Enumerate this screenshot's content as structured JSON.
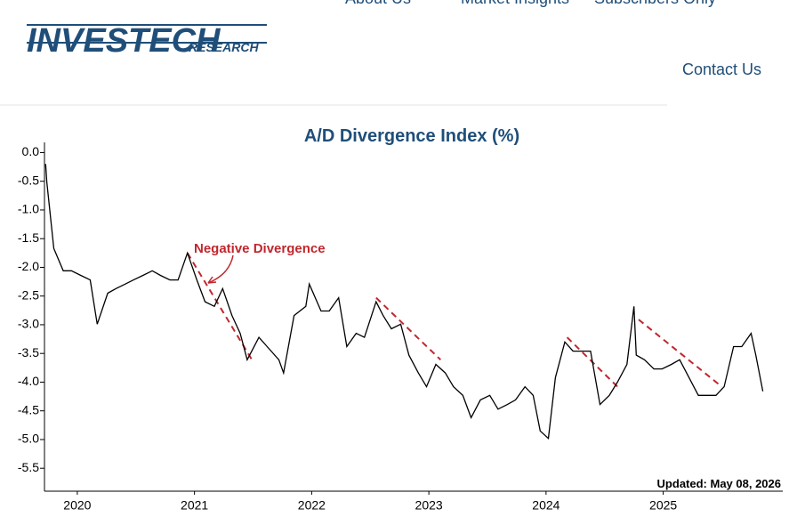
{
  "header": {
    "logo": {
      "main": "INVESTECH",
      "sub": "RESEARCH"
    },
    "nav": [
      "About Us",
      "Market Insights",
      "Subscribers Only",
      "Contact Us"
    ]
  },
  "chart_data": {
    "type": "line",
    "title": "A/D Divergence Index (%)",
    "color": "#000000",
    "x": [
      2020.23,
      2020.24,
      2020.3,
      2020.38,
      2020.45,
      2020.53,
      2020.61,
      2020.67,
      2020.76,
      2020.83,
      2020.91,
      2020.98,
      2021.06,
      2021.14,
      2021.21,
      2021.29,
      2021.36,
      2021.44,
      2021.52,
      2021.59,
      2021.67,
      2021.74,
      2021.82,
      2021.89,
      2021.95,
      2022.05,
      2022.12,
      2022.22,
      2022.26,
      2022.35,
      2022.45,
      2022.48,
      2022.58,
      2022.65,
      2022.73,
      2022.8,
      2022.88,
      2022.95,
      2023.05,
      2023.11,
      2023.18,
      2023.26,
      2023.33,
      2023.41,
      2023.48,
      2023.56,
      2023.64,
      2023.71,
      2023.79,
      2023.86,
      2023.94,
      2024.02,
      2024.09,
      2024.17,
      2024.24,
      2024.32,
      2024.39,
      2024.45,
      2024.52,
      2024.58,
      2024.66,
      2024.73,
      2024.81,
      2024.88,
      2024.96,
      2025.04,
      2025.11,
      2025.19,
      2025.25,
      2025.27,
      2025.34,
      2025.42,
      2025.49,
      2025.57,
      2025.64,
      2025.72,
      2025.8,
      2025.87,
      2025.95,
      2026.02,
      2026.1,
      2026.17,
      2026.25,
      2026.29,
      2026.35
    ],
    "values": [
      -0.2,
      -0.51,
      -1.67,
      -2.06,
      -2.06,
      -2.14,
      -2.22,
      -2.99,
      -2.45,
      -2.37,
      -2.29,
      -2.22,
      -2.14,
      -2.06,
      -2.14,
      -2.22,
      -2.22,
      -1.75,
      -2.22,
      -2.6,
      -2.68,
      -2.37,
      -2.84,
      -3.15,
      -3.61,
      -3.22,
      -3.38,
      -3.61,
      -3.84,
      -2.84,
      -2.68,
      -2.29,
      -2.76,
      -2.76,
      -2.53,
      -3.38,
      -3.15,
      -3.22,
      -2.6,
      -2.84,
      -3.07,
      -2.99,
      -3.53,
      -3.84,
      -4.08,
      -3.69,
      -3.84,
      -4.08,
      -4.23,
      -4.62,
      -4.31,
      -4.23,
      -4.47,
      -4.39,
      -4.31,
      -4.08,
      -4.23,
      -4.85,
      -4.98,
      -3.92,
      -3.3,
      -3.46,
      -3.46,
      -3.46,
      -4.39,
      -4.23,
      -4.0,
      -3.69,
      -2.68,
      -3.53,
      -3.61,
      -3.77,
      -3.77,
      -3.69,
      -3.61,
      -3.92,
      -4.23,
      -4.23,
      -4.23,
      -4.08,
      -3.38,
      -3.38,
      -3.15,
      -3.53,
      -4.16
    ],
    "trend_lines": {
      "color": "#c0272d",
      "lines": [
        {
          "x": [
            2021.44,
            2021.99
          ],
          "y": [
            -1.75,
            -3.61
          ]
        },
        {
          "x": [
            2023.05,
            2023.6
          ],
          "y": [
            -2.53,
            -3.61
          ]
        },
        {
          "x": [
            2024.68,
            2025.11
          ],
          "y": [
            -3.22,
            -4.08
          ]
        },
        {
          "x": [
            2025.29,
            2026.0
          ],
          "y": [
            -2.91,
            -4.08
          ]
        }
      ]
    },
    "annotation": "Negative Divergence",
    "updated": "Updated: May 08, 2026",
    "xlim": [
      2020.22,
      2026.52
    ],
    "xticks": [
      {
        "value": 2020.5,
        "label": "2020"
      },
      {
        "value": 2021.5,
        "label": "2021"
      },
      {
        "value": 2022.5,
        "label": "2022"
      },
      {
        "value": 2023.5,
        "label": "2023"
      },
      {
        "value": 2024.5,
        "label": "2024"
      },
      {
        "value": 2025.5,
        "label": "2025"
      }
    ],
    "ylim": [
      -5.9,
      0.1
    ],
    "yticks": [
      {
        "value": 0,
        "label": "0.0"
      },
      -0.5,
      {
        "value": -1,
        "label": "-1.0"
      },
      -1.5,
      {
        "value": -2,
        "label": "-2.0"
      },
      -2.5,
      {
        "value": -3,
        "label": "-3.0"
      },
      -3.5,
      {
        "value": -4,
        "label": "-4.0"
      },
      -4.5,
      {
        "value": -5,
        "label": "-5.0"
      },
      -5.5
    ]
  }
}
